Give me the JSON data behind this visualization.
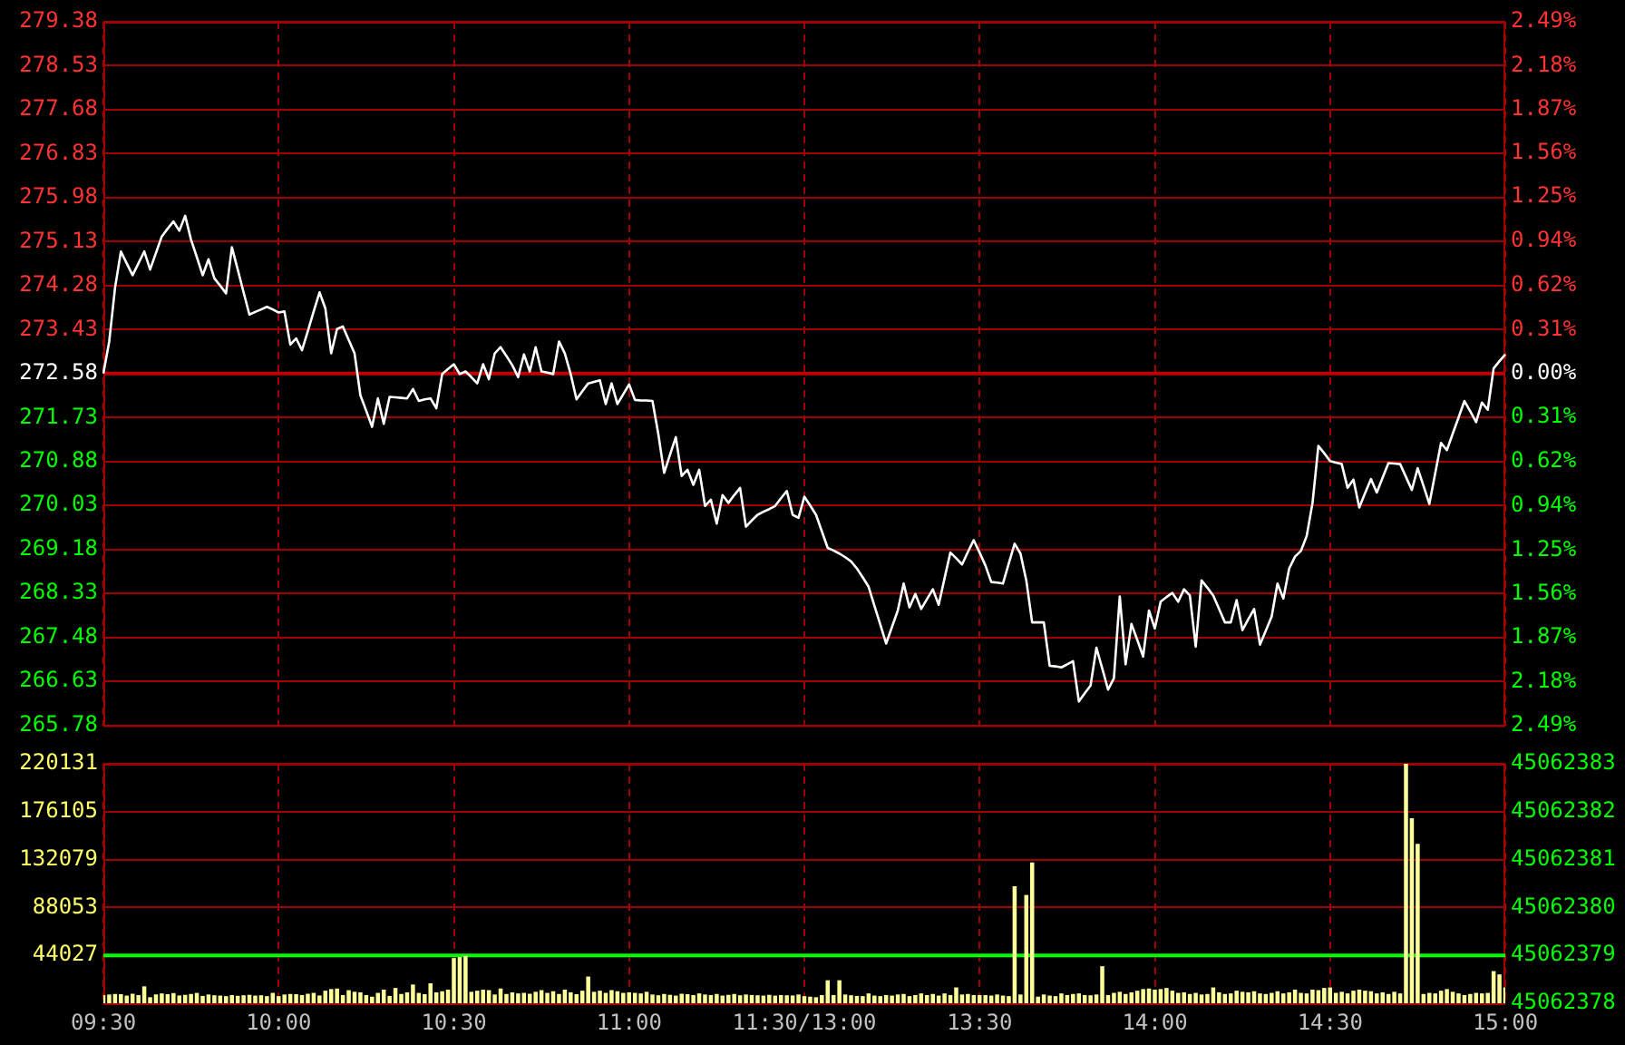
{
  "chart_data": [
    {
      "type": "line",
      "color": "#ffffff",
      "marker": "none",
      "grid": true,
      "tick_labels": "y",
      "categories": [
        null,
        null,
        null,
        null,
        null,
        null,
        null,
        null,
        null,
        null,
        null,
        null,
        null,
        null,
        null,
        null,
        null,
        null,
        null,
        null,
        null,
        null,
        null,
        null,
        null,
        null,
        null,
        null,
        null,
        null,
        null,
        null,
        null,
        null,
        null,
        null,
        null,
        null,
        null,
        null,
        null,
        null,
        null,
        null,
        null,
        null,
        null,
        null,
        null,
        null,
        null,
        null,
        null,
        null,
        null,
        null,
        null,
        null,
        null,
        null,
        null,
        null,
        null,
        null,
        null,
        null,
        null,
        null,
        null,
        null,
        null,
        null,
        null,
        null,
        null,
        null,
        null,
        null,
        null,
        null,
        null,
        null,
        null,
        null,
        null,
        null,
        null,
        null,
        null,
        null,
        null,
        null,
        null,
        null,
        null,
        null,
        null,
        null,
        null,
        null,
        null,
        null,
        null,
        null,
        null,
        null,
        null,
        null,
        null,
        null,
        null,
        null,
        null,
        null,
        null,
        null,
        null,
        null,
        null,
        null,
        null,
        null,
        null,
        null,
        null,
        null,
        null,
        null,
        null,
        null,
        null,
        null,
        null,
        null,
        null,
        null,
        null,
        null,
        null,
        null,
        null,
        null,
        null,
        null,
        null,
        null,
        null,
        null,
        null,
        null,
        null,
        null,
        null,
        null,
        null,
        null,
        null,
        null,
        null,
        null,
        null,
        null,
        null,
        null,
        null,
        null,
        null,
        null,
        null,
        null,
        null,
        null,
        null,
        null,
        null,
        null,
        null,
        null,
        null,
        null,
        null,
        null,
        null,
        null,
        null,
        null,
        null,
        null,
        null,
        null,
        null,
        null,
        null,
        null,
        null,
        null,
        null,
        null,
        null,
        null,
        null,
        null,
        null,
        null,
        null,
        null,
        null,
        null,
        null,
        null,
        null,
        null,
        null,
        null,
        null,
        null,
        null,
        null,
        null,
        null,
        null,
        null,
        null,
        null,
        null,
        null,
        null,
        null,
        null,
        null,
        null,
        null,
        null,
        null,
        null,
        null,
        null,
        null,
        null,
        null,
        null
      ],
      "values": [
        272.58,
        273.2,
        274.24,
        274.94,
        274.71,
        274.48,
        274.71,
        274.94,
        274.59,
        274.91,
        275.23,
        275.38,
        275.52,
        275.34,
        275.63,
        275.17,
        274.83,
        274.48,
        274.79,
        274.42,
        274.28,
        274.13,
        275.02,
        274.59,
        274.15,
        273.72,
        273.77,
        273.82,
        273.87,
        273.82,
        273.76,
        273.78,
        273.14,
        273.26,
        273.03,
        273.4,
        273.78,
        274.15,
        273.84,
        272.97,
        273.44,
        273.49,
        273.23,
        272.97,
        272.16,
        271.86,
        271.55,
        272.1,
        271.61,
        272.13,
        272.12,
        272.11,
        272.1,
        272.28,
        272.05,
        272.08,
        272.1,
        271.91,
        272.57,
        272.67,
        272.76,
        272.57,
        272.62,
        272.51,
        272.39,
        272.76,
        272.47,
        272.97,
        273.09,
        272.92,
        272.74,
        272.51,
        272.95,
        272.62,
        273.09,
        272.62,
        272.6,
        272.57,
        273.2,
        272.97,
        272.57,
        272.08,
        272.24,
        272.39,
        272.42,
        272.45,
        271.99,
        272.39,
        271.99,
        272.18,
        272.37,
        272.07,
        272.06,
        272.06,
        272.05,
        271.41,
        270.66,
        271.01,
        271.35,
        270.6,
        270.72,
        270.43,
        270.72,
        270.02,
        270.14,
        269.68,
        270.23,
        270.08,
        270.23,
        270.37,
        269.62,
        269.74,
        269.85,
        269.91,
        269.96,
        270.02,
        270.17,
        270.31,
        269.85,
        269.79,
        270.2,
        270.03,
        269.85,
        269.53,
        269.21,
        269.16,
        269.1,
        269.03,
        268.95,
        268.81,
        268.64,
        268.46,
        268.09,
        267.73,
        267.36,
        267.68,
        268.0,
        268.52,
        268.06,
        268.32,
        268.03,
        268.22,
        268.41,
        268.11,
        268.62,
        269.12,
        269.01,
        268.89,
        269.13,
        269.36,
        269.12,
        268.87,
        268.55,
        268.54,
        268.52,
        268.91,
        269.29,
        269.1,
        268.58,
        267.77,
        267.77,
        267.77,
        266.93,
        266.92,
        266.9,
        266.96,
        267.02,
        266.24,
        266.4,
        266.55,
        267.28,
        266.88,
        266.47,
        266.69,
        268.27,
        266.96,
        267.74,
        267.43,
        267.11,
        268.0,
        267.65,
        268.17,
        268.26,
        268.34,
        268.17,
        268.41,
        268.29,
        267.3,
        268.58,
        268.44,
        268.29,
        268.03,
        267.77,
        267.77,
        268.2,
        267.62,
        267.83,
        268.03,
        267.34,
        267.61,
        267.88,
        268.52,
        268.23,
        268.81,
        269.04,
        269.15,
        269.44,
        270.08,
        271.18,
        271.04,
        270.89,
        270.86,
        270.83,
        270.37,
        270.53,
        269.99,
        270.27,
        270.54,
        270.28,
        270.57,
        270.85,
        270.84,
        270.83,
        270.58,
        270.33,
        270.75,
        270.41,
        270.06,
        270.65,
        271.24,
        271.1,
        271.42,
        271.73,
        272.05,
        271.85,
        271.64,
        272.02,
        271.88,
        272.68,
        272.82,
        272.95
      ],
      "ylim": [
        265.78,
        279.38
      ],
      "yticks": [
        265.78,
        266.63,
        267.48,
        268.33,
        269.18,
        270.03,
        270.88,
        271.73,
        272.58,
        273.43,
        274.28,
        275.13,
        275.98,
        276.83,
        277.68,
        278.53,
        279.38
      ],
      "y2lim": [
        -2.49,
        2.49
      ],
      "y2ticks": [
        {
          "value": -2.49,
          "label": "2.49%"
        },
        {
          "value": -2.18,
          "label": "2.18%"
        },
        {
          "value": -1.87,
          "label": "1.87%"
        },
        {
          "value": -1.56,
          "label": "1.56%"
        },
        {
          "value": -1.25,
          "label": "1.25%"
        },
        {
          "value": -0.94,
          "label": "0.94%"
        },
        {
          "value": -0.62,
          "label": "0.62%"
        },
        {
          "value": -0.31,
          "label": "0.31%"
        },
        {
          "value": 0,
          "label": "0.00%"
        },
        {
          "value": 0.31,
          "label": "0.31%"
        },
        {
          "value": 0.62,
          "label": "0.62%"
        },
        {
          "value": 0.94,
          "label": "0.94%"
        },
        {
          "value": 1.25,
          "label": "1.25%"
        },
        {
          "value": 1.56,
          "label": "1.56%"
        },
        {
          "value": 1.87,
          "label": "1.87%"
        },
        {
          "value": 2.18,
          "label": "2.18%"
        },
        {
          "value": 2.49,
          "label": "2.49%"
        }
      ],
      "ref_lines": [
        {
          "axis": "y",
          "value": 272.58,
          "color": "#c00000"
        }
      ]
    },
    {
      "type": "bar",
      "color": "#ffff99",
      "grid": true,
      "categories": [
        "09:30",
        null,
        null,
        null,
        null,
        null,
        null,
        null,
        null,
        null,
        null,
        null,
        null,
        null,
        null,
        null,
        null,
        null,
        null,
        null,
        null,
        null,
        null,
        null,
        null,
        null,
        null,
        null,
        null,
        null,
        "10:00",
        null,
        null,
        null,
        null,
        null,
        null,
        null,
        null,
        null,
        null,
        null,
        null,
        null,
        null,
        null,
        null,
        null,
        null,
        null,
        null,
        null,
        null,
        null,
        null,
        null,
        null,
        null,
        null,
        null,
        "10:30",
        null,
        null,
        null,
        null,
        null,
        null,
        null,
        null,
        null,
        null,
        null,
        null,
        null,
        null,
        null,
        null,
        null,
        null,
        null,
        null,
        null,
        null,
        null,
        null,
        null,
        null,
        null,
        null,
        null,
        "11:00",
        null,
        null,
        null,
        null,
        null,
        null,
        null,
        null,
        null,
        null,
        null,
        null,
        null,
        null,
        null,
        null,
        null,
        null,
        null,
        null,
        null,
        null,
        null,
        null,
        null,
        null,
        null,
        null,
        null,
        "11:30/13:00",
        null,
        null,
        null,
        null,
        null,
        null,
        null,
        null,
        null,
        null,
        null,
        null,
        null,
        null,
        null,
        null,
        null,
        null,
        null,
        null,
        null,
        null,
        null,
        null,
        null,
        null,
        null,
        null,
        null,
        "13:30",
        null,
        null,
        null,
        null,
        null,
        null,
        null,
        null,
        null,
        null,
        null,
        null,
        null,
        null,
        null,
        null,
        null,
        null,
        null,
        null,
        null,
        null,
        null,
        null,
        null,
        null,
        null,
        null,
        null,
        "14:00",
        null,
        null,
        null,
        null,
        null,
        null,
        null,
        null,
        null,
        null,
        null,
        null,
        null,
        null,
        null,
        null,
        null,
        null,
        null,
        null,
        null,
        null,
        null,
        null,
        null,
        null,
        null,
        null,
        null,
        "14:30",
        null,
        null,
        null,
        null,
        null,
        null,
        null,
        null,
        null,
        null,
        null,
        null,
        null,
        null,
        null,
        null,
        null,
        null,
        null,
        null,
        null,
        null,
        null,
        null,
        null,
        null,
        null,
        null,
        null,
        "15:00"
      ],
      "values": [
        7000,
        7500,
        8000,
        7800,
        6500,
        8200,
        7000,
        15000,
        5000,
        7600,
        8500,
        7800,
        8800,
        6600,
        7200,
        8000,
        9000,
        6200,
        7500,
        6800,
        6500,
        6000,
        7000,
        6300,
        6800,
        7200,
        6500,
        6800,
        6000,
        9000,
        6000,
        7500,
        8000,
        7800,
        7000,
        8200,
        9000,
        6600,
        11000,
        12500,
        13000,
        7000,
        11500,
        10000,
        9500,
        7000,
        5500,
        9000,
        12000,
        6200,
        13500,
        8000,
        9500,
        16700,
        9000,
        7800,
        17800,
        9500,
        10500,
        12000,
        41000,
        42000,
        43000,
        10000,
        11000,
        12000,
        11500,
        7500,
        13000,
        8000,
        9500,
        8500,
        9000,
        8200,
        10000,
        11500,
        9000,
        10500,
        8000,
        12000,
        9500,
        7800,
        11000,
        24000,
        10000,
        11000,
        9000,
        11500,
        10500,
        9000,
        9500,
        9000,
        8500,
        10000,
        7500,
        6800,
        8000,
        7200,
        6500,
        8200,
        7800,
        7000,
        8500,
        7500,
        7000,
        8000,
        6500,
        7200,
        8000,
        6800,
        7500,
        7000,
        6800,
        6500,
        7200,
        6500,
        7000,
        6800,
        6600,
        7500,
        6000,
        5500,
        5000,
        7000,
        20600,
        7000,
        20600,
        7500,
        6800,
        6200,
        6000,
        8500,
        6500,
        6000,
        7000,
        6500,
        7500,
        8000,
        6000,
        7000,
        8500,
        7000,
        8000,
        6500,
        8500,
        7000,
        14000,
        7500,
        8000,
        7000,
        7000,
        7000,
        6500,
        7500,
        6500,
        6000,
        107000,
        7500,
        99000,
        129000,
        5500,
        7500,
        6500,
        6000,
        8500,
        7000,
        8000,
        8500,
        7000,
        6800,
        7500,
        33500,
        7000,
        9000,
        10000,
        8000,
        9500,
        11000,
        12500,
        13000,
        12000,
        12500,
        13500,
        11000,
        9000,
        9500,
        8000,
        9000,
        7500,
        8000,
        14000,
        9500,
        8000,
        8500,
        11000,
        10000,
        9500,
        10500,
        8500,
        8000,
        9000,
        10500,
        8500,
        9500,
        12000,
        9000,
        8500,
        12000,
        11500,
        13500,
        14000,
        9000,
        10000,
        8500,
        11000,
        12000,
        11000,
        10500,
        8500,
        9500,
        8000,
        10000,
        8500,
        220131,
        169500,
        146000,
        8000,
        9000,
        8500,
        11000,
        12500,
        10000,
        8500,
        7000,
        8000,
        9000,
        8500,
        9000,
        29000,
        26000,
        14000
      ],
      "ylim": [
        0,
        220131
      ],
      "yticks": [
        44027,
        88053,
        132079,
        176105,
        220131
      ],
      "y2lim": [
        45062378,
        45062383
      ],
      "y2ticks": [
        45062378,
        45062379,
        45062380,
        45062381,
        45062382,
        45062383
      ],
      "ref_lines": [
        {
          "axis": "y",
          "value": 44027,
          "color": "#00ff00"
        }
      ]
    }
  ]
}
